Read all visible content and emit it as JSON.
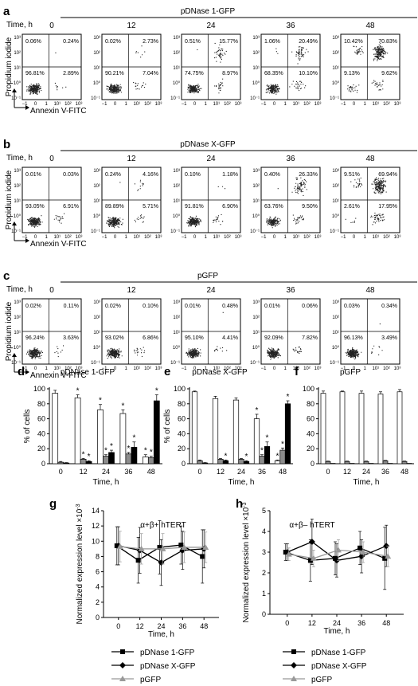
{
  "flow_panels": [
    {
      "letter": "a",
      "title": "pDNase 1-GFP",
      "cells": [
        {
          "time": "0",
          "ul": "0.06%",
          "ur": "0.24%",
          "ll": "96.81%",
          "lr": "2.89%"
        },
        {
          "time": "12",
          "ul": "0.02%",
          "ur": "2.73%",
          "ll": "90.21%",
          "lr": "7.04%"
        },
        {
          "time": "24",
          "ul": "0.51%",
          "ur": "15.77%",
          "ll": "74.75%",
          "lr": "8.97%"
        },
        {
          "time": "36",
          "ul": "1.06%",
          "ur": "20.49%",
          "ll": "68.35%",
          "lr": "10.10%"
        },
        {
          "time": "48",
          "ul": "10.42%",
          "ur": "70.83%",
          "ll": "9.13%",
          "lr": "9.62%"
        }
      ]
    },
    {
      "letter": "b",
      "title": "pDNase X-GFP",
      "cells": [
        {
          "time": "0",
          "ul": "0.01%",
          "ur": "0.03%",
          "ll": "93.05%",
          "lr": "6.91%"
        },
        {
          "time": "12",
          "ul": "0.24%",
          "ur": "4.16%",
          "ll": "89.89%",
          "lr": "5.71%"
        },
        {
          "time": "24",
          "ul": "0.10%",
          "ur": "1.18%",
          "ll": "91.81%",
          "lr": "6.90%"
        },
        {
          "time": "36",
          "ul": "0.40%",
          "ur": "26.33%",
          "ll": "63.76%",
          "lr": "9.50%"
        },
        {
          "time": "48",
          "ul": "9.51%",
          "ur": "69.94%",
          "ll": "2.61%",
          "lr": "17.95%"
        }
      ]
    },
    {
      "letter": "c",
      "title": "pGFP",
      "cells": [
        {
          "time": "0",
          "ul": "0.02%",
          "ur": "0.11%",
          "ll": "96.24%",
          "lr": "3.63%"
        },
        {
          "time": "12",
          "ul": "0.02%",
          "ur": "0.10%",
          "ll": "93.02%",
          "lr": "6.86%"
        },
        {
          "time": "24",
          "ul": "0.01%",
          "ur": "0.48%",
          "ll": "95.10%",
          "lr": "4.41%"
        },
        {
          "time": "36",
          "ul": "0.01%",
          "ur": "0.06%",
          "ll": "92.09%",
          "lr": "7.82%"
        },
        {
          "time": "48",
          "ul": "0.03%",
          "ur": "0.34%",
          "ll": "96.13%",
          "lr": "3.49%"
        }
      ]
    }
  ],
  "flow_labels": {
    "time": "Time, h",
    "ylabel": "Propidium iodide",
    "xlabel": "Annexin V-FITC"
  },
  "colors": {
    "white_bar": "#ffffff",
    "grey_bar": "#8c8c8c",
    "black_bar": "#000000",
    "grey_line": "#999999"
  },
  "chart_data": [
    {
      "type": "bar",
      "letter": "d",
      "title": "pDNase 1-GFP",
      "xlabel": "Time, h",
      "ylabel": "% of cells",
      "categories": [
        "0",
        "12",
        "24",
        "36",
        "48"
      ],
      "ylim": [
        0,
        100
      ],
      "yticks": [
        0,
        20,
        40,
        60,
        80,
        100
      ],
      "series": [
        {
          "values": [
            94,
            88,
            72,
            67,
            9
          ],
          "err": [
            4,
            4,
            7,
            5,
            3
          ],
          "color": "white",
          "star": [
            false,
            true,
            true,
            true,
            true
          ]
        },
        {
          "values": [
            2,
            6,
            10,
            13,
            8
          ],
          "err": [
            1,
            1,
            2,
            2,
            2
          ],
          "color": "grey",
          "star": [
            false,
            true,
            true,
            true,
            true
          ]
        },
        {
          "values": [
            1,
            3,
            15,
            22,
            84
          ],
          "err": [
            0.5,
            1,
            3,
            7,
            8
          ],
          "color": "black",
          "star": [
            false,
            true,
            true,
            true,
            true
          ]
        }
      ]
    },
    {
      "type": "bar",
      "letter": "e",
      "title": "pDNase X-GFP",
      "xlabel": "Time, h",
      "ylabel": "% of cells",
      "categories": [
        "0",
        "12",
        "24",
        "36",
        "48"
      ],
      "ylim": [
        0,
        100
      ],
      "yticks": [
        0,
        20,
        40,
        60,
        80,
        100
      ],
      "series": [
        {
          "values": [
            96,
            87,
            85,
            60,
            4
          ],
          "err": [
            1,
            3,
            3,
            6,
            1
          ],
          "color": "white",
          "star": [
            false,
            false,
            false,
            true,
            true
          ]
        },
        {
          "values": [
            4,
            6,
            6,
            10,
            18
          ],
          "err": [
            1,
            1,
            1,
            2,
            3
          ],
          "color": "grey",
          "star": [
            false,
            false,
            false,
            true,
            true
          ]
        },
        {
          "values": [
            1,
            4,
            3,
            23,
            80
          ],
          "err": [
            0.5,
            1,
            1,
            6,
            4
          ],
          "color": "black",
          "star": [
            false,
            true,
            true,
            true,
            true
          ]
        }
      ]
    },
    {
      "type": "bar",
      "letter": "f",
      "title": "pGFP",
      "xlabel": "Time, h",
      "ylabel": "",
      "categories": [
        "0",
        "12",
        "24",
        "36",
        "48"
      ],
      "ylim": [
        0,
        100
      ],
      "yticks": [
        0,
        20,
        40,
        60,
        80,
        100
      ],
      "series": [
        {
          "values": [
            94,
            96,
            94,
            93,
            96
          ],
          "err": [
            3,
            1,
            3,
            3,
            3
          ],
          "color": "white",
          "star": [
            false,
            false,
            false,
            false,
            false
          ]
        },
        {
          "values": [
            3,
            3,
            3,
            4,
            3
          ],
          "err": [
            0.5,
            0.5,
            0.5,
            0.5,
            0.5
          ],
          "color": "grey",
          "star": [
            false,
            false,
            false,
            false,
            false
          ]
        },
        {
          "values": [
            0.5,
            0.5,
            0.5,
            0.5,
            0.5
          ],
          "err": [
            0,
            0,
            0,
            0,
            0
          ],
          "color": "black",
          "star": [
            false,
            false,
            false,
            false,
            false
          ]
        }
      ]
    },
    {
      "type": "line",
      "letter": "g",
      "title": "α+β+ hTERT",
      "xlabel": "Time, h",
      "ylabel": "Normalized expression level ×10",
      "yexp": "-3",
      "x": [
        "0",
        "12",
        "24",
        "36",
        "48"
      ],
      "ylim": [
        0,
        14
      ],
      "yticks": [
        0,
        2,
        4,
        6,
        8,
        10,
        12,
        14
      ],
      "series": [
        {
          "name": "pDNase 1-GFP",
          "values": [
            9.4,
            7.5,
            9.2,
            9.5,
            8.0
          ],
          "err": [
            2.5,
            3,
            3.5,
            2.5,
            3.5
          ],
          "marker": "square",
          "color": "black"
        },
        {
          "name": "pDNase X-GFP",
          "values": [
            9.4,
            8.8,
            7.2,
            8.8,
            9.0
          ],
          "err": [
            2.5,
            3,
            3,
            2.5,
            2.5
          ],
          "marker": "diamond",
          "color": "black"
        },
        {
          "name": "pGFP",
          "values": [
            9.3,
            9.0,
            9.0,
            9.2,
            9.2
          ],
          "err": [
            2,
            2,
            2,
            2,
            2
          ],
          "marker": "triangle",
          "color": "grey"
        }
      ]
    },
    {
      "type": "line",
      "letter": "h",
      "title": "α+β– hTERT",
      "xlabel": "Time, h",
      "ylabel": "Normalized expression level ×10",
      "yexp": "-3",
      "x": [
        "0",
        "12",
        "24",
        "36",
        "48"
      ],
      "ylim": [
        0,
        5
      ],
      "yticks": [
        0,
        1,
        2,
        3,
        4,
        5
      ],
      "series": [
        {
          "name": "pDNase 1-GFP",
          "values": [
            3.0,
            2.6,
            2.7,
            3.2,
            2.7
          ],
          "err": [
            0.4,
            1.0,
            0.8,
            0.8,
            1.5
          ],
          "marker": "square",
          "color": "black"
        },
        {
          "name": "pDNase X-GFP",
          "values": [
            3.0,
            3.5,
            2.6,
            2.8,
            3.3
          ],
          "err": [
            0.4,
            1.1,
            0.8,
            0.8,
            1.0
          ],
          "marker": "diamond",
          "color": "black"
        },
        {
          "name": "pGFP",
          "values": [
            2.9,
            2.7,
            3.1,
            3.0,
            2.8
          ],
          "err": [
            0.3,
            0.4,
            0.5,
            0.5,
            0.5
          ],
          "marker": "triangle",
          "color": "grey"
        }
      ]
    }
  ]
}
